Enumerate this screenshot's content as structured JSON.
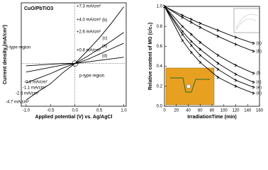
{
  "chart_data": [
    {
      "type": "line",
      "title": "CuO/PbTiO3",
      "xlabel": "Applied potential (V) vs. Ag/AgCl",
      "ylabel": "Current density (mA/cm²)",
      "x": [
        -1.0,
        -0.75,
        -0.5,
        -0.25,
        0,
        0.25,
        0.5,
        0.75,
        1.0
      ],
      "xlim": [
        -1.1,
        1.05
      ],
      "ylim": [
        -5.5,
        7.8
      ],
      "xticks": [
        {
          "value": -1,
          "label": "-1.0"
        },
        -0.5,
        {
          "value": 0,
          "label": "0.0"
        },
        0.5,
        {
          "value": 1,
          "label": "1.0"
        }
      ],
      "markers": false,
      "series": [
        {
          "name": "(b)",
          "color": "#000000",
          "values": [
            -4.7,
            -3.6,
            -2.6,
            -1.2,
            0,
            1.6,
            3.3,
            5.2,
            7.3
          ]
        },
        {
          "name": "(c)",
          "color": "#000000",
          "values": [
            -2.5,
            -1.9,
            -1.3,
            -0.6,
            0,
            0.9,
            1.9,
            2.9,
            4.0
          ]
        },
        {
          "name": "(a)",
          "color": "#000000",
          "values": [
            -1.1,
            -0.8,
            -0.5,
            -0.2,
            0,
            0.5,
            1.2,
            1.9,
            2.6
          ]
        },
        {
          "name": "(d)",
          "color": "#000000",
          "values": [
            -0.3,
            -0.2,
            -0.1,
            0,
            0,
            0.2,
            0.4,
            0.6,
            0.8
          ]
        }
      ],
      "annotations": [
        "+7.3 mA/cm²",
        "+4.0 mA/cm²",
        "+2.6 mA/cm²",
        "+0.8 mA/cm²",
        "n-type region",
        "p-type region",
        "-0.3 mA/cm²",
        "-1.1 mA/cm²",
        "-2.5 mA/cm²",
        "-4.7 mA/cm²"
      ]
    },
    {
      "type": "line",
      "xlabel": "IrradiationTime (min)",
      "ylabel": "Relative content of MG (c/c₀)",
      "x": [
        0,
        30,
        45,
        60,
        90,
        120,
        150
      ],
      "xlim": [
        0,
        160
      ],
      "ylim": [
        0,
        1.0
      ],
      "xticks": [
        0,
        20,
        40,
        60,
        80,
        100,
        120,
        140,
        160
      ],
      "yticks": [
        {
          "value": 0,
          "label": "0.0"
        },
        0.2,
        0.4,
        0.6,
        0.8,
        {
          "value": 1,
          "label": "1.0"
        }
      ],
      "markers": true,
      "series": [
        {
          "name": "(a)",
          "color": "#000000",
          "values": [
            1,
            0.91,
            0.87,
            0.83,
            0.76,
            0.69,
            0.63
          ]
        },
        {
          "name": "(b)",
          "color": "#000000",
          "values": [
            1,
            0.89,
            0.84,
            0.79,
            0.7,
            0.62,
            0.55
          ]
        },
        {
          "name": "(f)",
          "color": "#000000",
          "values": [
            1,
            0.8,
            0.72,
            0.64,
            0.51,
            0.41,
            0.33
          ]
        },
        {
          "name": "(c)",
          "color": "#000000",
          "values": [
            1,
            0.75,
            0.65,
            0.57,
            0.43,
            0.32,
            0.24
          ]
        },
        {
          "name": "(e)",
          "color": "#000000",
          "values": [
            1,
            0.72,
            0.61,
            0.51,
            0.37,
            0.26,
            0.19
          ]
        },
        {
          "name": "(d)",
          "color": "#000000",
          "values": [
            1,
            0.66,
            0.54,
            0.44,
            0.29,
            0.2,
            0.13
          ]
        }
      ]
    }
  ]
}
